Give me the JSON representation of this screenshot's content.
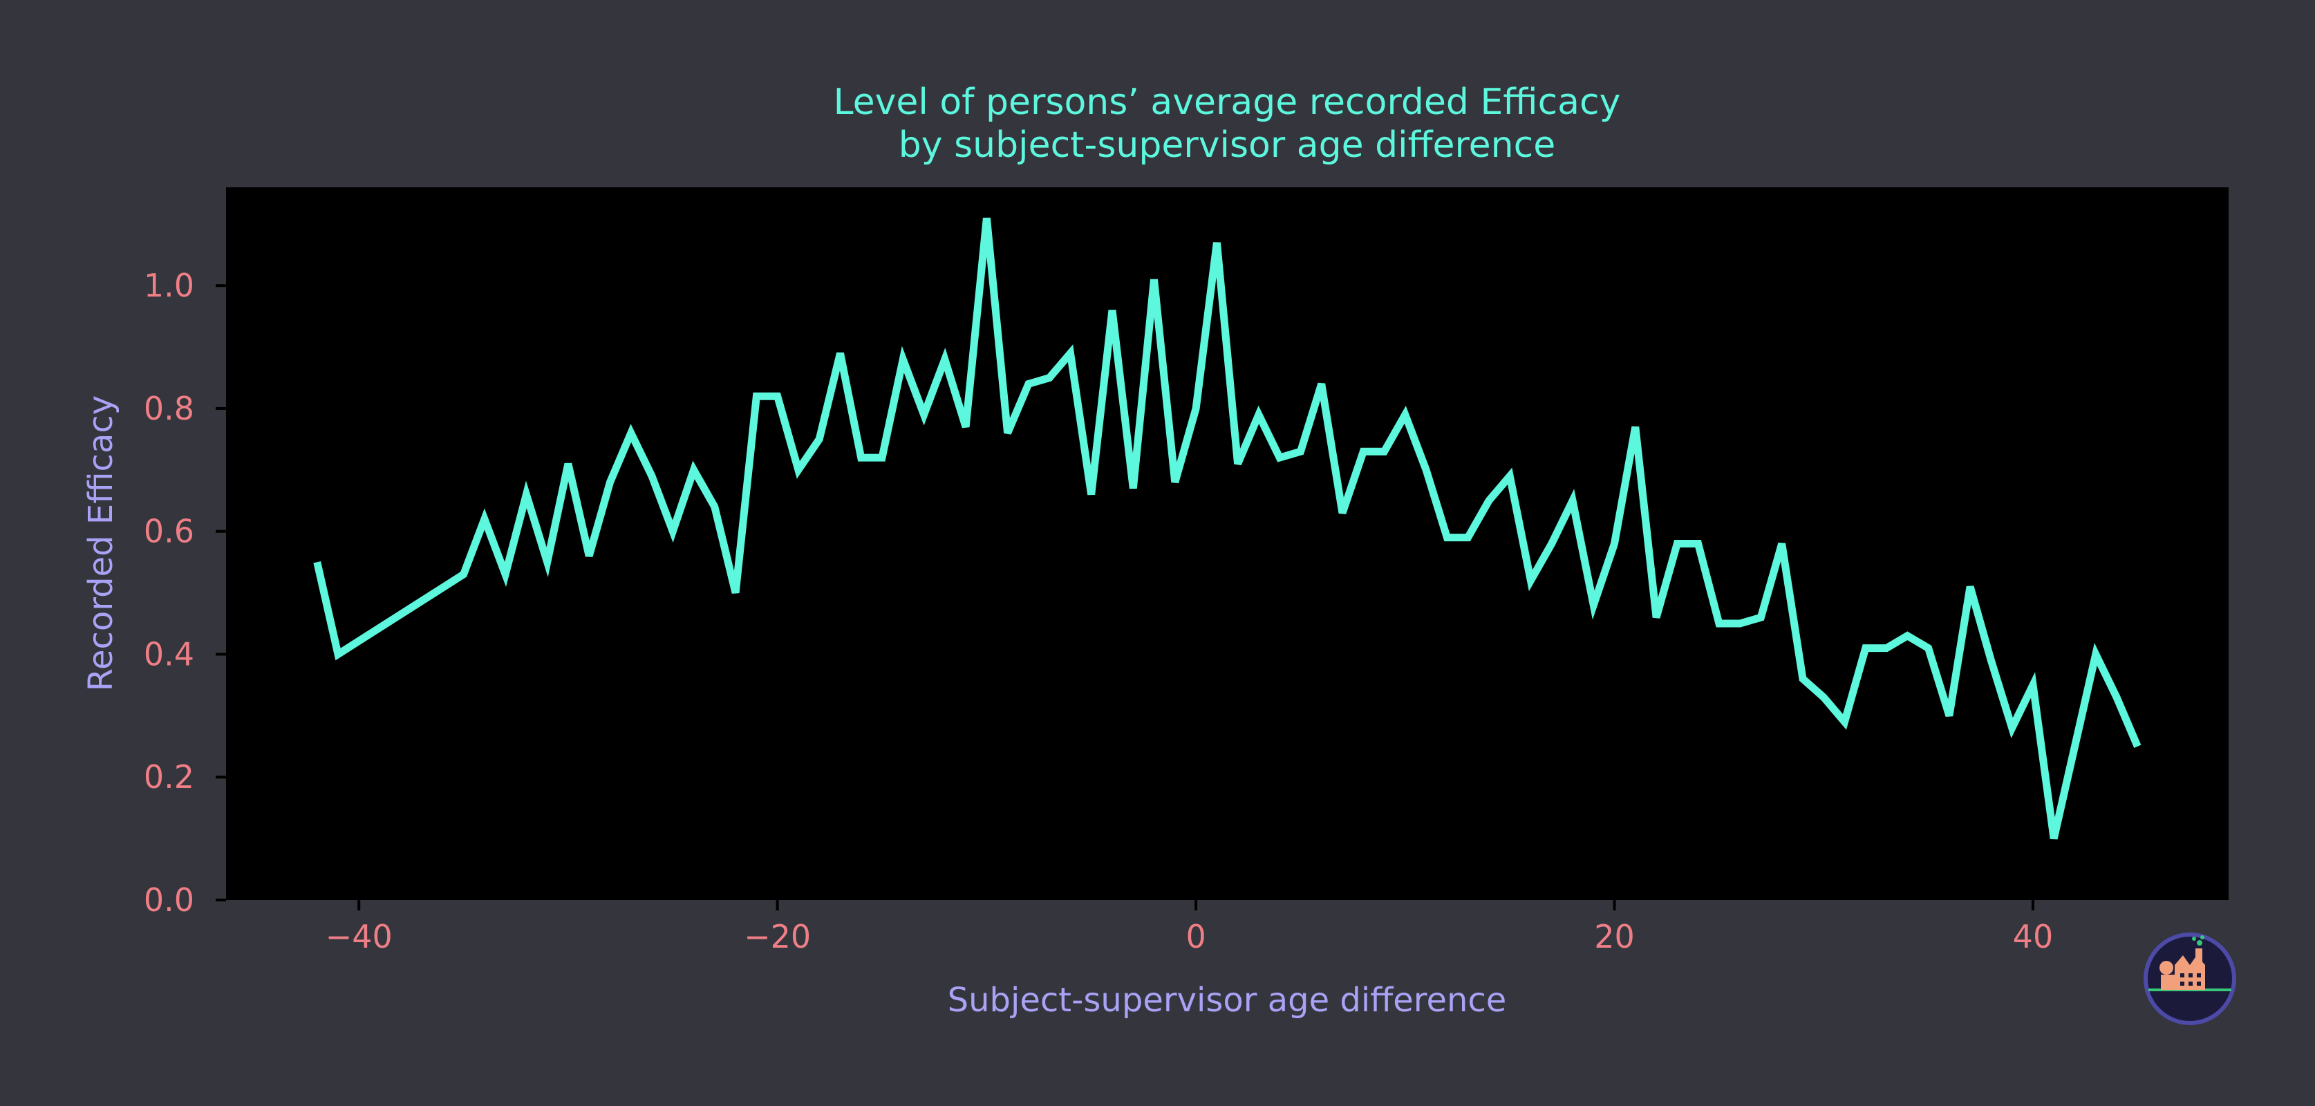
{
  "colors": {
    "background": "#34353d",
    "plot_background": "#000000",
    "line": "#5cf7dd",
    "title": "#5cf7dd",
    "axis_label": "#a9a2f5",
    "tick_label": "#ef7f86",
    "axis_spine": "#000000"
  },
  "logo": {
    "icon": "factory-logo-icon"
  },
  "chart_data": {
    "type": "line",
    "title_line1": "Level of persons’ average recorded Efficacy",
    "title_line2": "by subject-supervisor age difference",
    "xlabel": "Subject-supervisor age difference",
    "ylabel": "Recorded Efficacy",
    "xlim": [
      -46.35,
      49.35
    ],
    "ylim": [
      0,
      1.16
    ],
    "xticks": [
      -40,
      -20,
      0,
      20,
      40
    ],
    "xtick_labels": [
      "−40",
      "−20",
      "0",
      "20",
      "40"
    ],
    "yticks": [
      0.0,
      0.2,
      0.4,
      0.6,
      0.8,
      1.0
    ],
    "ytick_labels": [
      "0.0",
      "0.2",
      "0.4",
      "0.6",
      "0.8",
      "1.0"
    ],
    "grid": false,
    "series": [
      {
        "x": [
          -42,
          -41,
          -35,
          -34,
          -33,
          -32,
          -31,
          -30,
          -29,
          -28,
          -27,
          -26,
          -25,
          -24,
          -23,
          -22,
          -21,
          -20,
          -19,
          -18,
          -17,
          -16,
          -15,
          -14,
          -13,
          -12,
          -11,
          -10,
          -9,
          -8,
          -7,
          -6,
          -5,
          -4,
          -3,
          -2,
          -1,
          0,
          1,
          2,
          3,
          4,
          5,
          6,
          7,
          8,
          9,
          10,
          11,
          12,
          13,
          14,
          15,
          16,
          17,
          18,
          19,
          20,
          21,
          22,
          23,
          24,
          25,
          26,
          27,
          28,
          29,
          30,
          31,
          32,
          33,
          34,
          35,
          36,
          37,
          38,
          39,
          40,
          41,
          42,
          43,
          44,
          45
        ],
        "y": [
          0.55,
          0.4,
          0.53,
          0.62,
          0.53,
          0.66,
          0.55,
          0.71,
          0.56,
          0.68,
          0.76,
          0.69,
          0.6,
          0.7,
          0.64,
          0.5,
          0.82,
          0.82,
          0.7,
          0.75,
          0.89,
          0.72,
          0.72,
          0.88,
          0.79,
          0.88,
          0.77,
          1.11,
          0.76,
          0.84,
          0.85,
          0.89,
          0.66,
          0.96,
          0.67,
          1.01,
          0.68,
          0.8,
          1.07,
          0.71,
          0.79,
          0.72,
          0.73,
          0.84,
          0.63,
          0.73,
          0.73,
          0.79,
          0.7,
          0.59,
          0.59,
          0.65,
          0.69,
          0.52,
          0.58,
          0.65,
          0.48,
          0.58,
          0.77,
          0.46,
          0.58,
          0.58,
          0.45,
          0.45,
          0.46,
          0.58,
          0.36,
          0.33,
          0.29,
          0.41,
          0.41,
          0.43,
          0.41,
          0.3,
          0.51,
          0.39,
          0.28,
          0.35,
          0.1,
          0.25,
          0.4,
          0.33,
          0.25
        ]
      }
    ]
  }
}
